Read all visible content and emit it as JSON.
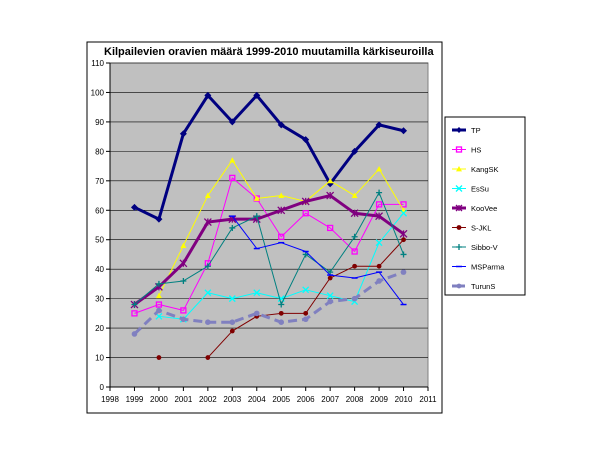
{
  "chart_data": {
    "type": "line",
    "title": "Kilpailevien oravien määrä 1999-2010 muutamilla kärkiseuroilla",
    "xlabel": "",
    "ylabel": "",
    "xlim": [
      1998,
      2011
    ],
    "ylim": [
      0,
      110
    ],
    "x_ticks": [
      1998,
      1999,
      2000,
      2001,
      2002,
      2003,
      2004,
      2005,
      2006,
      2007,
      2008,
      2009,
      2010,
      2011
    ],
    "y_ticks": [
      0,
      10,
      20,
      30,
      40,
      50,
      60,
      70,
      80,
      90,
      100,
      110
    ],
    "grid": "horizontal",
    "plot_background": "#c0c0c0",
    "legend_position": "right",
    "series": [
      {
        "name": "TP",
        "color": "#000080",
        "marker": "diamond",
        "width": 3,
        "points": [
          [
            1999,
            61
          ],
          [
            2000,
            57
          ],
          [
            2001,
            86
          ],
          [
            2002,
            99
          ],
          [
            2003,
            90
          ],
          [
            2004,
            99
          ],
          [
            2005,
            89
          ],
          [
            2006,
            84
          ],
          [
            2007,
            69
          ],
          [
            2008,
            80
          ],
          [
            2009,
            89
          ],
          [
            2010,
            87
          ]
        ]
      },
      {
        "name": "HS",
        "color": "#ff00ff",
        "marker": "square",
        "width": 1,
        "points": [
          [
            1999,
            25
          ],
          [
            2000,
            28
          ],
          [
            2001,
            26
          ],
          [
            2002,
            42
          ],
          [
            2003,
            71
          ],
          [
            2004,
            64
          ],
          [
            2005,
            51
          ],
          [
            2006,
            59
          ],
          [
            2007,
            54
          ],
          [
            2008,
            46
          ],
          [
            2009,
            62
          ],
          [
            2010,
            62
          ]
        ]
      },
      {
        "name": "KangSK",
        "color": "#ffff00",
        "marker": "triangle",
        "width": 1,
        "points": [
          [
            2000,
            31
          ],
          [
            2001,
            48
          ],
          [
            2002,
            65
          ],
          [
            2003,
            77
          ],
          [
            2004,
            64
          ],
          [
            2005,
            65
          ],
          [
            2006,
            63
          ],
          [
            2007,
            70
          ],
          [
            2008,
            65
          ],
          [
            2009,
            74
          ],
          [
            2010,
            60
          ]
        ]
      },
      {
        "name": "EsSu",
        "color": "#00ffff",
        "marker": "x",
        "width": 1,
        "points": [
          [
            2000,
            24
          ],
          [
            2001,
            23
          ],
          [
            2002,
            32
          ],
          [
            2003,
            30
          ],
          [
            2004,
            32
          ],
          [
            2005,
            30
          ],
          [
            2006,
            33
          ],
          [
            2007,
            31
          ],
          [
            2008,
            29
          ],
          [
            2009,
            49
          ],
          [
            2010,
            59
          ]
        ]
      },
      {
        "name": "KooVee",
        "color": "#800080",
        "marker": "star",
        "width": 3,
        "points": [
          [
            1999,
            28
          ],
          [
            2000,
            34
          ],
          [
            2001,
            42
          ],
          [
            2002,
            56
          ],
          [
            2003,
            57
          ],
          [
            2004,
            57
          ],
          [
            2005,
            60
          ],
          [
            2006,
            63
          ],
          [
            2007,
            65
          ],
          [
            2008,
            59
          ],
          [
            2009,
            58
          ],
          [
            2010,
            52
          ]
        ]
      },
      {
        "name": "S-JKL",
        "color": "#800000",
        "marker": "circle",
        "width": 1,
        "segments": [
          [
            [
              2000,
              10
            ]
          ],
          [
            [
              2002,
              10
            ],
            [
              2003,
              19
            ],
            [
              2004,
              24
            ],
            [
              2005,
              25
            ],
            [
              2006,
              25
            ],
            [
              2007,
              37
            ],
            [
              2008,
              41
            ],
            [
              2009,
              41
            ],
            [
              2010,
              50
            ]
          ]
        ]
      },
      {
        "name": "Sibbo-V",
        "color": "#008080",
        "marker": "plus",
        "width": 1,
        "points": [
          [
            1999,
            28
          ],
          [
            2000,
            35
          ],
          [
            2001,
            36
          ],
          [
            2002,
            41
          ],
          [
            2003,
            54
          ],
          [
            2004,
            58
          ],
          [
            2005,
            28
          ],
          [
            2006,
            45
          ],
          [
            2007,
            39
          ],
          [
            2008,
            51
          ],
          [
            2009,
            66
          ],
          [
            2010,
            45
          ]
        ]
      },
      {
        "name": "MSParma",
        "color": "#0000ff",
        "marker": "dash",
        "width": 1,
        "points": [
          [
            2003,
            58
          ],
          [
            2004,
            47
          ],
          [
            2005,
            49
          ],
          [
            2006,
            46
          ],
          [
            2007,
            38
          ],
          [
            2008,
            37
          ],
          [
            2009,
            39
          ],
          [
            2010,
            28
          ]
        ]
      },
      {
        "name": "TurunS",
        "color": "#8080c0",
        "marker": "circle",
        "width": 3,
        "dashed": true,
        "points": [
          [
            1999,
            18
          ],
          [
            2000,
            26
          ],
          [
            2001,
            23
          ],
          [
            2002,
            22
          ],
          [
            2003,
            22
          ],
          [
            2004,
            25
          ],
          [
            2005,
            22
          ],
          [
            2006,
            23
          ],
          [
            2007,
            29
          ],
          [
            2008,
            30
          ],
          [
            2009,
            36
          ],
          [
            2010,
            39
          ]
        ]
      }
    ]
  }
}
